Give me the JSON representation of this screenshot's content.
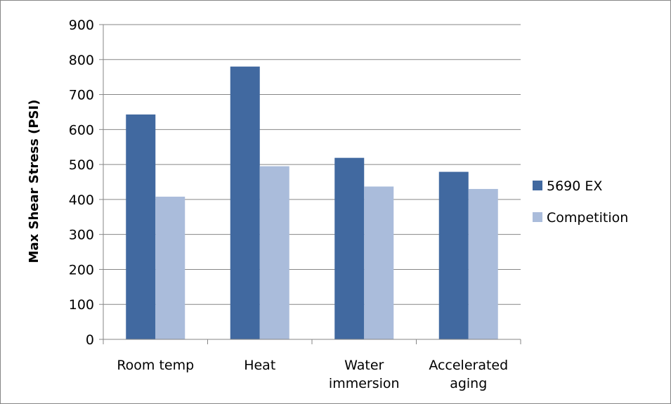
{
  "chart_data": {
    "type": "bar",
    "title": "",
    "xlabel": "",
    "ylabel": "Max Shear Stress  (PSI)",
    "categories": [
      [
        "Room temp"
      ],
      [
        "Heat"
      ],
      [
        "Water",
        "immersion"
      ],
      [
        "Accelerated",
        "aging"
      ]
    ],
    "series": [
      {
        "name": "5690 EX",
        "color": "#4169A0",
        "values": [
          643,
          780,
          519,
          479
        ]
      },
      {
        "name": "Competition",
        "color": "#AABCDB",
        "values": [
          408,
          495,
          437,
          430
        ]
      }
    ],
    "ylim": [
      0,
      900
    ],
    "yticks": [
      0,
      100,
      200,
      300,
      400,
      500,
      600,
      700,
      800,
      900
    ],
    "grid": true,
    "legend_position": "right",
    "gridline_color": "#868686",
    "axis_color": "#868686"
  }
}
